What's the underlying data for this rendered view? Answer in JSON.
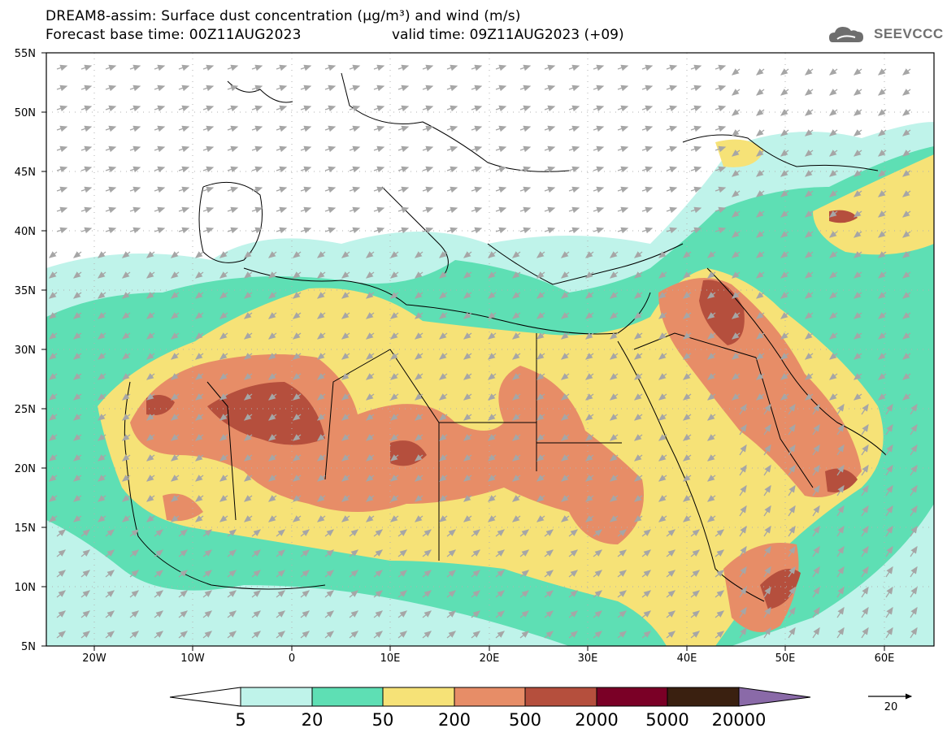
{
  "header": {
    "title": "DREAM8-assim: Surface dust concentration (µg/m³) and wind (m/s)",
    "base_time": "Forecast base time: 00Z11AUG2023",
    "valid_time": "valid time: 09Z11AUG2023 (+09)"
  },
  "logo": {
    "text": "SEEVCCC",
    "icon": "cloud-icon"
  },
  "axes": {
    "lat_labels": [
      "55N",
      "50N",
      "45N",
      "40N",
      "35N",
      "30N",
      "25N",
      "20N",
      "15N",
      "10N",
      "5N"
    ],
    "lon_labels": [
      "20W",
      "10W",
      "0",
      "10E",
      "20E",
      "30E",
      "40E",
      "50E",
      "60E"
    ]
  },
  "colorbar": {
    "labels": [
      "5",
      "20",
      "50",
      "200",
      "500",
      "2000",
      "5000",
      "20000"
    ],
    "colors": [
      "#bff3ea",
      "#5edfb4",
      "#f6e277",
      "#e78d67",
      "#b54f3d",
      "#7a0026",
      "#3a2010",
      "#8a6aa8"
    ]
  },
  "wind_reference": {
    "label": "20"
  }
}
